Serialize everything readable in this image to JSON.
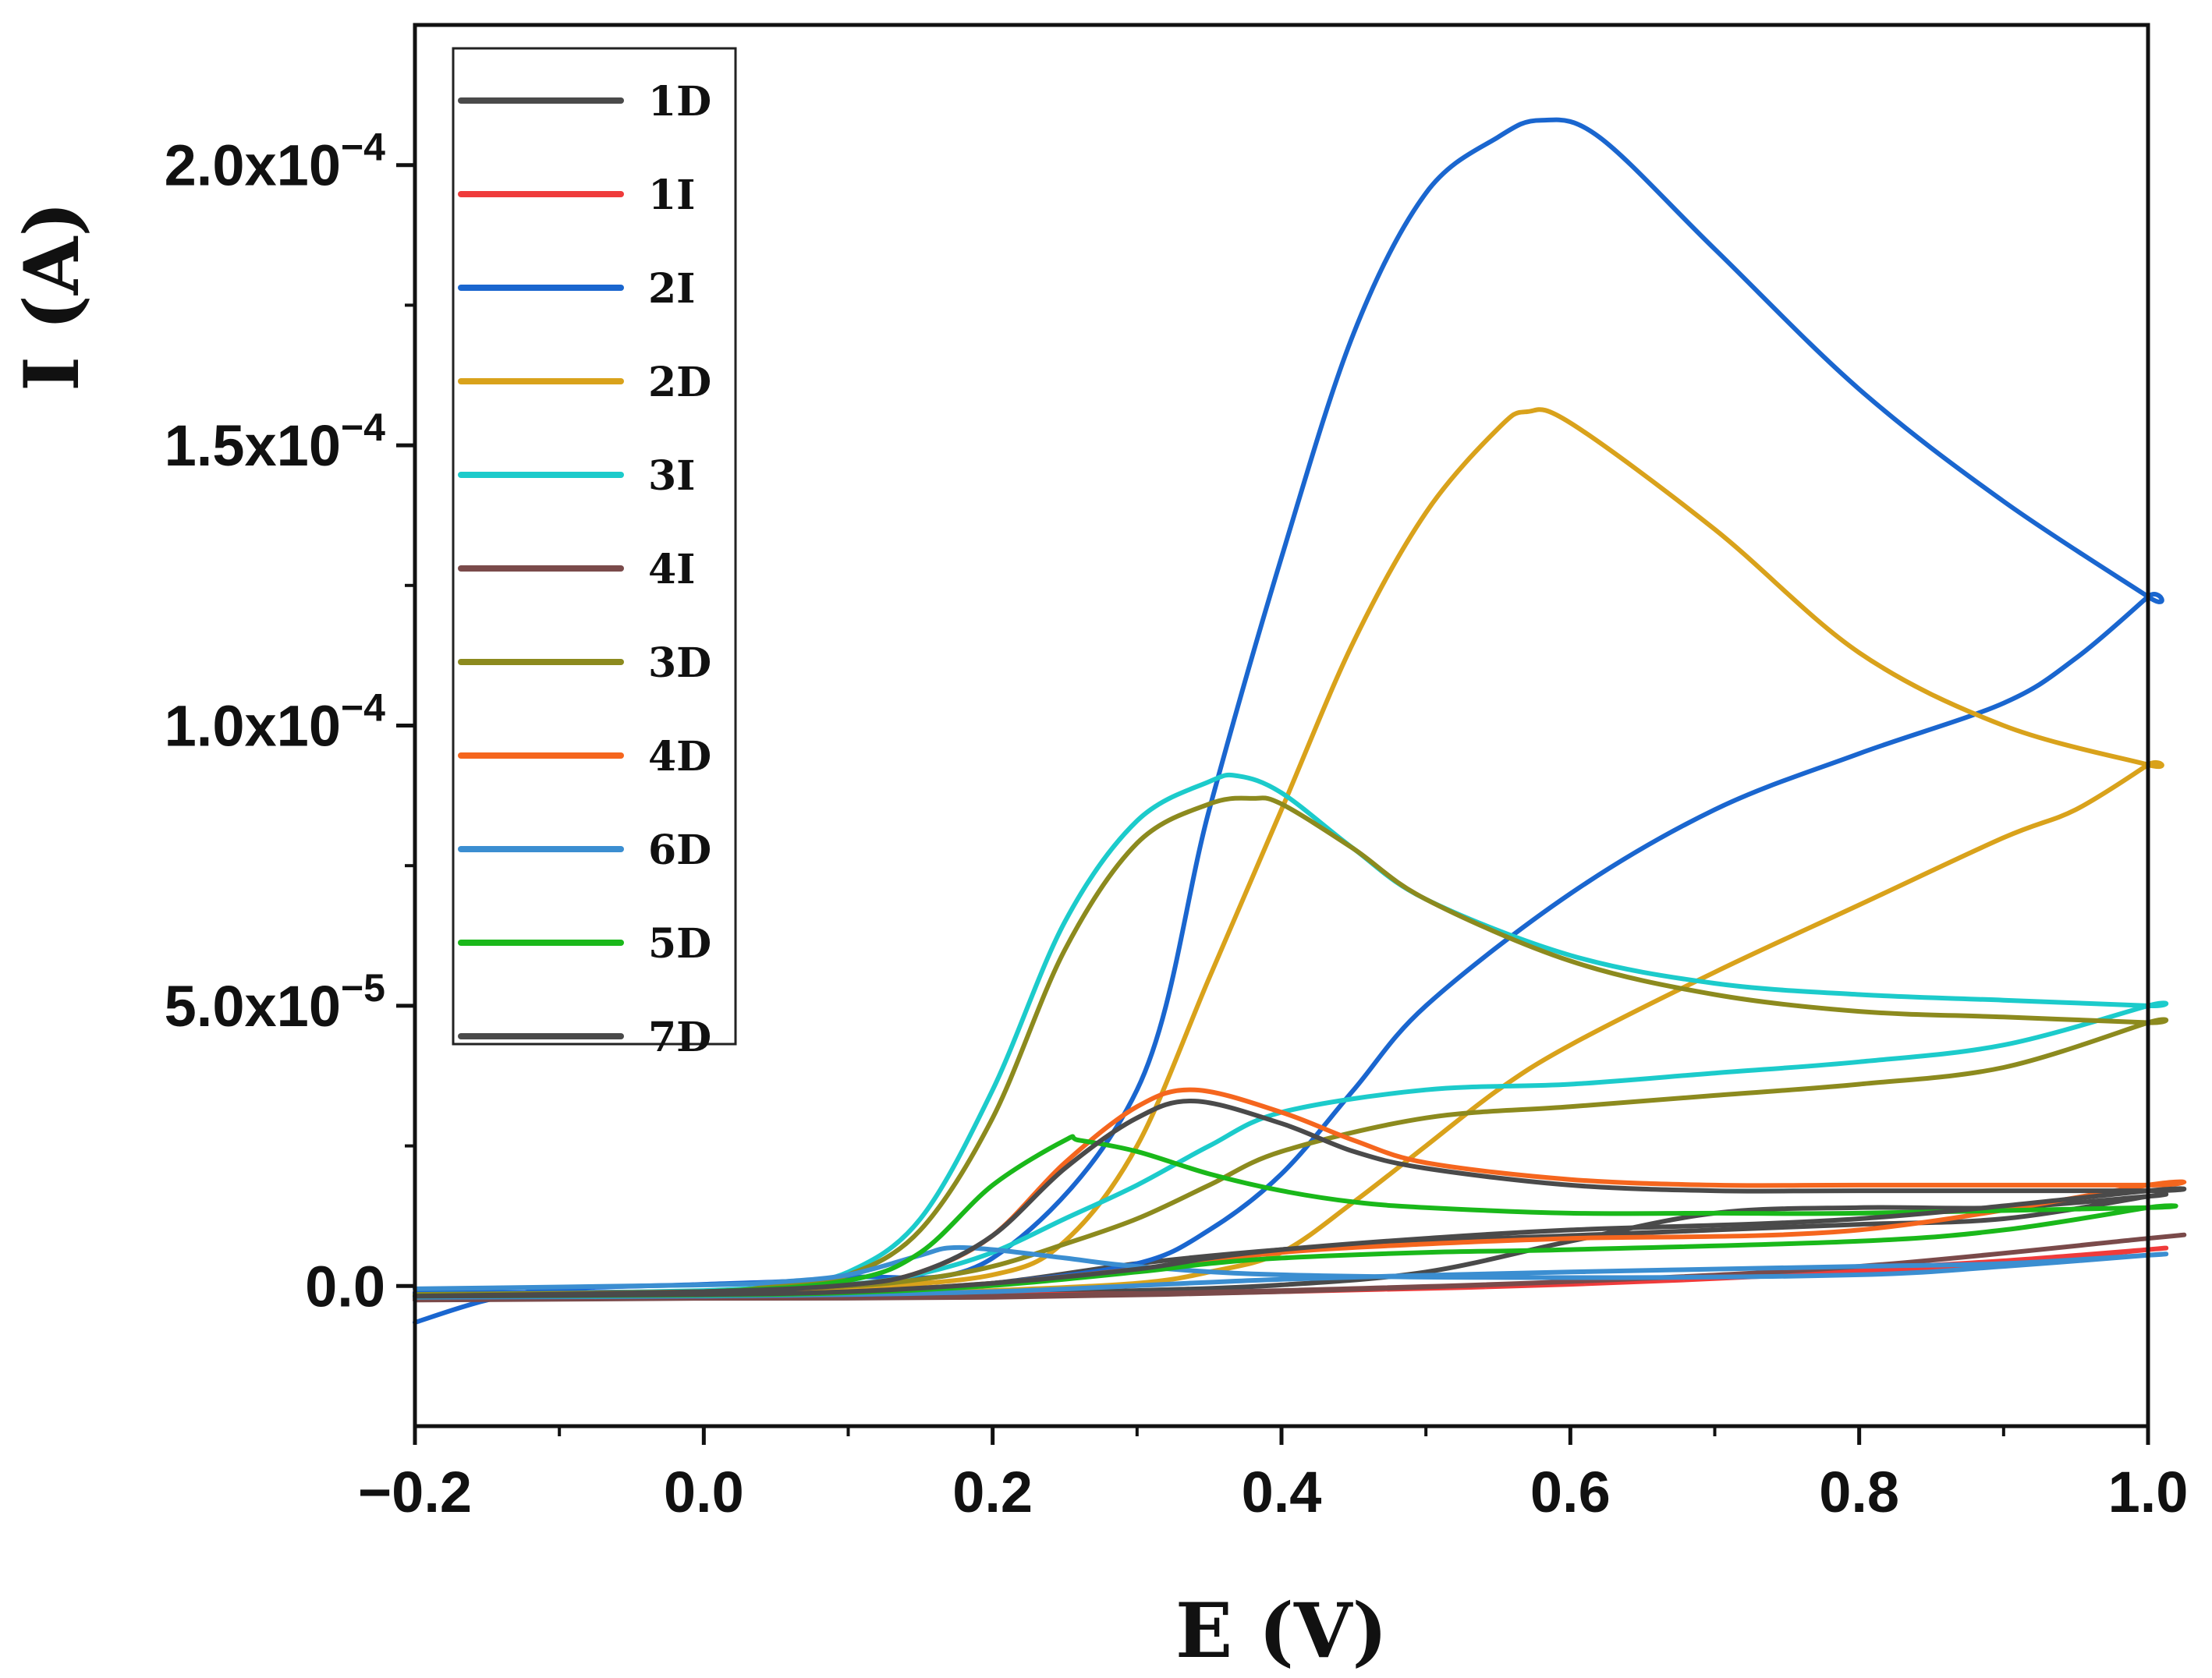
{
  "chart_data": {
    "type": "line",
    "title": "",
    "xlabel": "E (V)",
    "ylabel": "I (A)",
    "xlim": [
      -0.2,
      1.0
    ],
    "ylim": [
      -2.5e-05,
      0.000225
    ],
    "x_ticks": [
      {
        "value": -0.2,
        "label": "−0.2"
      },
      {
        "value": 0.0,
        "label": "0.0"
      },
      {
        "value": 0.2,
        "label": "0.2"
      },
      {
        "value": 0.4,
        "label": "0.4"
      },
      {
        "value": 0.6,
        "label": "0.6"
      },
      {
        "value": 0.8,
        "label": "0.8"
      },
      {
        "value": 1.0,
        "label": "1.0"
      }
    ],
    "y_ticks": [
      {
        "value": 0.0,
        "mantissa": "0.0",
        "exponent": ""
      },
      {
        "value": 5e-05,
        "mantissa": "5.0x10",
        "exponent": "−5"
      },
      {
        "value": 0.0001,
        "mantissa": "1.0x10",
        "exponent": "−4"
      },
      {
        "value": 0.00015,
        "mantissa": "1.5x10",
        "exponent": "−4"
      },
      {
        "value": 0.0002,
        "mantissa": "2.0x10",
        "exponent": "−4"
      }
    ],
    "legend_position": "top-left",
    "grid": false,
    "series": [
      {
        "name": "1D",
        "color": "#4a4a4a",
        "x": [
          -0.2,
          0.0,
          0.2,
          0.3,
          0.4,
          0.5,
          0.6,
          0.7,
          0.8,
          0.9,
          1.0,
          1.0,
          0.9,
          0.8,
          0.7,
          0.6,
          0.5,
          0.4,
          0.3,
          0.2,
          0.1,
          0.0,
          -0.2
        ],
        "y": [
          -1.2e-06,
          -1.3e-06,
          -1.2e-06,
          -8e-07,
          2e-07,
          2.5e-06,
          8e-06,
          1.3e-05,
          1.4e-05,
          1.4e-05,
          1.6e-05,
          1.6e-05,
          1.2e-05,
          1.1e-05,
          1e-05,
          9e-06,
          8e-06,
          6.5e-06,
          4e-06,
          5e-07,
          -1e-06,
          -1.5e-06,
          -1.8e-06
        ]
      },
      {
        "name": "1I",
        "color": "#ef3b3b",
        "x": [
          -0.2,
          0.0,
          0.2,
          0.4,
          0.6,
          0.8,
          0.9,
          1.0,
          1.0,
          0.9,
          0.8,
          0.6,
          0.4,
          0.2,
          0.0,
          -0.2
        ],
        "y": [
          -1.8e-06,
          -1.8e-06,
          -1.8e-06,
          -1e-06,
          5e-07,
          3e-06,
          4.5e-06,
          6.5e-06,
          6.5e-06,
          4e-06,
          2.5e-06,
          3e-07,
          -1e-06,
          -1.6e-06,
          -1.8e-06,
          -2e-06
        ]
      },
      {
        "name": "2I",
        "color": "#1a66cf",
        "x": [
          -0.2,
          -0.15,
          -0.1,
          0.0,
          0.1,
          0.2,
          0.3,
          0.35,
          0.4,
          0.45,
          0.5,
          0.55,
          0.58,
          0.62,
          0.7,
          0.8,
          0.9,
          1.0,
          1.0,
          0.95,
          0.9,
          0.8,
          0.7,
          0.6,
          0.5,
          0.45,
          0.4,
          0.35,
          0.3,
          0.2,
          0.1,
          0.0,
          -0.2
        ],
        "y": [
          -6.5e-06,
          -2.5e-06,
          -5e-07,
          3e-07,
          1.5e-06,
          5e-06,
          3.5e-05,
          8.5e-05,
          0.00013,
          0.00017,
          0.000195,
          0.000205,
          0.000208,
          0.000205,
          0.000185,
          0.00016,
          0.00014,
          0.000123,
          0.000123,
          0.000112,
          0.000104,
          9.5e-05,
          8.5e-05,
          7e-05,
          5e-05,
          3.5e-05,
          2e-05,
          1e-05,
          4e-06,
          5e-07,
          -8e-07,
          -1e-06,
          -1.2e-06
        ]
      },
      {
        "name": "2D",
        "color": "#d9a21b",
        "x": [
          -0.2,
          0.0,
          0.1,
          0.2,
          0.25,
          0.3,
          0.35,
          0.4,
          0.45,
          0.5,
          0.55,
          0.57,
          0.6,
          0.7,
          0.8,
          0.9,
          1.0,
          1.0,
          0.95,
          0.9,
          0.8,
          0.7,
          0.6,
          0.55,
          0.5,
          0.45,
          0.4,
          0.35,
          0.3,
          0.2,
          0.1,
          0.0,
          -0.2
        ],
        "y": [
          -1.8e-06,
          -1e-06,
          -3e-07,
          2e-06,
          8e-06,
          2.5e-05,
          5.5e-05,
          8.5e-05,
          0.000115,
          0.000138,
          0.000153,
          0.000156,
          0.000154,
          0.000135,
          0.000113,
          0.0001,
          9.3e-05,
          9.3e-05,
          8.5e-05,
          8e-05,
          6.8e-05,
          5.6e-05,
          4.3e-05,
          3.5e-05,
          2.5e-05,
          1.5e-05,
          6e-06,
          2.5e-06,
          5e-07,
          -8e-07,
          -1.5e-06,
          -1.8e-06,
          -2e-06
        ]
      },
      {
        "name": "3I",
        "color": "#1ccbcb",
        "x": [
          -0.2,
          0.0,
          0.05,
          0.1,
          0.15,
          0.2,
          0.25,
          0.3,
          0.35,
          0.37,
          0.4,
          0.45,
          0.5,
          0.6,
          0.7,
          0.8,
          0.9,
          1.0,
          1.0,
          0.9,
          0.8,
          0.7,
          0.6,
          0.5,
          0.4,
          0.35,
          0.3,
          0.25,
          0.2,
          0.15,
          0.1,
          0.0,
          -0.2
        ],
        "y": [
          -1.8e-06,
          -8e-07,
          2e-07,
          2.5e-06,
          1.2e-05,
          3.5e-05,
          6.5e-05,
          8.3e-05,
          9e-05,
          9.1e-05,
          8.8e-05,
          7.8e-05,
          6.9e-05,
          5.9e-05,
          5.4e-05,
          5.2e-05,
          5.1e-05,
          5e-05,
          5e-05,
          4.3e-05,
          4e-05,
          3.8e-05,
          3.6e-05,
          3.5e-05,
          3.1e-05,
          2.5e-05,
          1.8e-05,
          1.2e-05,
          6e-06,
          2.2e-06,
          3e-07,
          -1e-06,
          -1.5e-06
        ]
      },
      {
        "name": "4I",
        "color": "#7a4a4a",
        "x": [
          -0.2,
          0.0,
          0.2,
          0.4,
          0.6,
          0.8,
          1.0,
          1.0,
          0.8,
          0.6,
          0.4,
          0.2,
          0.0,
          -0.2
        ],
        "y": [
          -2.2e-06,
          -2.2e-06,
          -2e-06,
          -1e-06,
          8e-07,
          3.5e-06,
          8.5e-06,
          8.5e-06,
          3.5e-06,
          8e-07,
          -8e-07,
          -1.8e-06,
          -2.2e-06,
          -2.5e-06
        ]
      },
      {
        "name": "3D",
        "color": "#8c8a1e",
        "x": [
          -0.2,
          0.0,
          0.05,
          0.1,
          0.15,
          0.2,
          0.25,
          0.3,
          0.35,
          0.38,
          0.4,
          0.45,
          0.5,
          0.6,
          0.7,
          0.8,
          0.9,
          1.0,
          1.0,
          0.9,
          0.8,
          0.7,
          0.6,
          0.5,
          0.4,
          0.35,
          0.3,
          0.25,
          0.2,
          0.15,
          0.1,
          0.0,
          -0.2
        ],
        "y": [
          -2e-06,
          -1e-06,
          1e-07,
          2e-06,
          1e-05,
          3e-05,
          6e-05,
          7.9e-05,
          8.6e-05,
          8.7e-05,
          8.6e-05,
          7.8e-05,
          6.9e-05,
          5.8e-05,
          5.2e-05,
          4.9e-05,
          4.8e-05,
          4.7e-05,
          4.7e-05,
          3.9e-05,
          3.6e-05,
          3.4e-05,
          3.2e-05,
          3e-05,
          2.4e-05,
          1.8e-05,
          1.2e-05,
          7.5e-06,
          3.5e-06,
          1.2e-06,
          0.0,
          -1e-06,
          -1.5e-06
        ]
      },
      {
        "name": "4D",
        "color": "#f5661e",
        "x": [
          -0.2,
          0.0,
          0.1,
          0.15,
          0.2,
          0.25,
          0.3,
          0.34,
          0.4,
          0.45,
          0.5,
          0.6,
          0.7,
          0.8,
          1.0,
          1.0,
          0.8,
          0.6,
          0.5,
          0.4,
          0.3,
          0.2,
          0.1,
          0.0,
          -0.2
        ],
        "y": [
          -1.8e-06,
          -1e-06,
          2e-07,
          2.5e-06,
          9e-06,
          2.2e-05,
          3.2e-05,
          3.5e-05,
          3.1e-05,
          2.6e-05,
          2.2e-05,
          1.9e-05,
          1.8e-05,
          1.8e-05,
          1.8e-05,
          1.8e-05,
          1e-05,
          8.5e-06,
          7.5e-06,
          6e-06,
          3e-06,
          5e-07,
          -1e-06,
          -1.5e-06,
          -1.8e-06
        ]
      },
      {
        "name": "6D",
        "color": "#3b8ed1",
        "x": [
          -0.2,
          0.0,
          0.05,
          0.1,
          0.15,
          0.17,
          0.2,
          0.25,
          0.3,
          0.4,
          0.6,
          0.8,
          0.9,
          1.0,
          1.0,
          0.9,
          0.8,
          0.6,
          0.4,
          0.2,
          0.0,
          -0.2
        ],
        "y": [
          -5e-07,
          2e-07,
          7e-07,
          2e-06,
          5.5e-06,
          6.8e-06,
          6.5e-06,
          5e-06,
          3.5e-06,
          2e-06,
          1.5e-06,
          2e-06,
          3.5e-06,
          5.5e-06,
          5.5e-06,
          4e-06,
          3.5e-06,
          2.5e-06,
          1.2e-06,
          -1e-06,
          -1.8e-06,
          -2e-06
        ]
      },
      {
        "name": "5D",
        "color": "#1ab81a",
        "x": [
          -0.2,
          0.0,
          0.1,
          0.15,
          0.2,
          0.25,
          0.26,
          0.3,
          0.35,
          0.4,
          0.45,
          0.5,
          0.6,
          0.7,
          0.8,
          1.0,
          1.0,
          0.9,
          0.8,
          0.6,
          0.5,
          0.4,
          0.35,
          0.3,
          0.2,
          0.1,
          0.0,
          -0.2
        ],
        "y": [
          -1.8e-06,
          -1e-06,
          1e-06,
          6e-06,
          1.8e-05,
          2.6e-05,
          2.6e-05,
          2.4e-05,
          2e-05,
          1.7e-05,
          1.5e-05,
          1.4e-05,
          1.3e-05,
          1.3e-05,
          1.3e-05,
          1.4e-05,
          1.4e-05,
          1e-05,
          8e-06,
          6.5e-06,
          6e-06,
          5e-06,
          4e-06,
          2.5e-06,
          1e-07,
          -1.2e-06,
          -1.6e-06,
          -1.8e-06
        ]
      },
      {
        "name": "7D",
        "color": "#4a4a4a",
        "x": [
          -0.2,
          0.0,
          0.1,
          0.15,
          0.2,
          0.25,
          0.3,
          0.34,
          0.4,
          0.45,
          0.5,
          0.6,
          0.7,
          0.8,
          1.0,
          1.0,
          0.8,
          0.6,
          0.5,
          0.4,
          0.35,
          0.3,
          0.2,
          0.1,
          0.0,
          -0.2
        ],
        "y": [
          -1.8e-06,
          -1e-06,
          2e-07,
          2.5e-06,
          9e-06,
          2.1e-05,
          3e-05,
          3.3e-05,
          2.9e-05,
          2.4e-05,
          2.1e-05,
          1.8e-05,
          1.7e-05,
          1.7e-05,
          1.7e-05,
          1.7e-05,
          1.2e-05,
          1e-05,
          8.5e-06,
          6.5e-06,
          5e-06,
          3e-06,
          5e-07,
          -1e-06,
          -1.5e-06,
          -1.8e-06
        ]
      }
    ]
  }
}
